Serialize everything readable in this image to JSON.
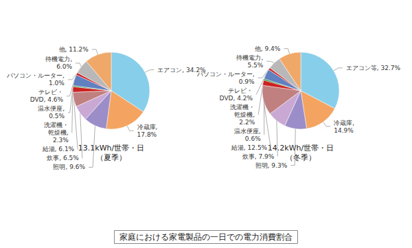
{
  "title": "家庭における家電製品の一日での電力消費割合",
  "chart_data": [
    {
      "type": "pie",
      "title": "13.1kWh/世帯・日\n（夏季）",
      "values": [
        34.2,
        17.8,
        9.6,
        6.5,
        6.1,
        2.3,
        0.5,
        4.6,
        1.0,
        6.0,
        11.2
      ],
      "value_labels": [
        "エアコン, 34.2%",
        "冷蔵庫,\n17.8%",
        "照明, 9.6%",
        "炊事, 6.5%",
        "給湯, 6.1%",
        "洗濯機・\n乾燥機,\n2.3%",
        "温水便座,\n0.5%",
        "テレビ・\nDVD, 4.6%",
        "パソコン・ルーター,\n1.0%",
        "待機電力,\n6.0%",
        "他, 11.2%"
      ],
      "colors": [
        "#87CEEB",
        "#F4A460",
        "#9B8DC8",
        "#C9A8D4",
        "#C08080",
        "#CC2222",
        "#228B22",
        "#6080C0",
        "#CC2222",
        "#B8B8B8",
        "#F0A868"
      ]
    },
    {
      "type": "pie",
      "title": "14.2kWh/世帯・日\n（冬季）",
      "values": [
        32.7,
        14.9,
        9.3,
        7.9,
        12.5,
        2.2,
        0.6,
        4.2,
        0.9,
        5.5,
        9.4
      ],
      "value_labels": [
        "エアコン等, 32.7%",
        "冷蔵庫,\n14.9%",
        "照明, 9.3%",
        "炊事, 7.9%",
        "給湯, 12.5%",
        "洗濯機・\n乾燥機,\n2.2%",
        "温水便座,\n0.6%",
        "テレビ・\nDVD, 4.2%",
        "パソコン・ルーター,\n0.9%",
        "待機電力,\n5.5%",
        "他, 9.4%"
      ],
      "colors": [
        "#87CEEB",
        "#F4A460",
        "#9B8DC8",
        "#C9A8D4",
        "#C08080",
        "#CC2222",
        "#228B22",
        "#6080C0",
        "#CC2222",
        "#B8B8B8",
        "#F0A868"
      ]
    }
  ]
}
